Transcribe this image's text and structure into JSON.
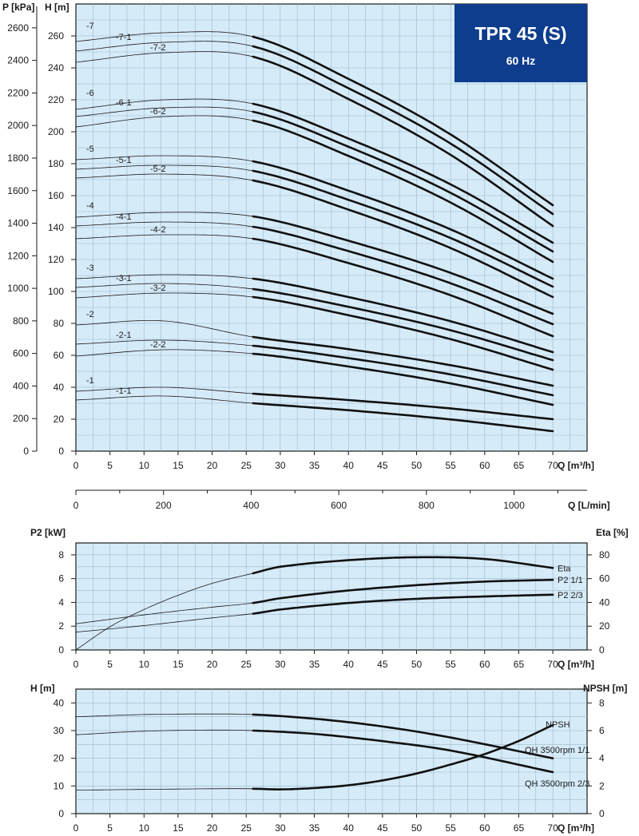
{
  "header": {
    "title": "TPR 45 (S)",
    "frequency": "60 Hz",
    "color": "#0d3d8c"
  },
  "chart_data": [
    {
      "type": "line",
      "name": "performance",
      "xlabel": "Q [m³/h]",
      "ylabel_left": "P [kPa]",
      "ylabel_right": "H [m]",
      "xlim": [
        0,
        75
      ],
      "ylim": [
        0,
        280
      ],
      "x_ticks": [
        0,
        5,
        10,
        15,
        20,
        25,
        30,
        35,
        40,
        45,
        50,
        55,
        60,
        65,
        70
      ],
      "y_ticks": [
        0,
        20,
        40,
        60,
        80,
        100,
        120,
        140,
        160,
        180,
        200,
        220,
        240,
        260
      ],
      "p_ticks": [
        0,
        200,
        400,
        600,
        800,
        1000,
        1200,
        1400,
        1600,
        1800,
        2000,
        2200,
        2400,
        2600
      ],
      "x_ticks_lmin": [
        0,
        200,
        400,
        600,
        800,
        1000
      ],
      "xlabel_lmin": "Q [L/min]",
      "operating_range_start": 26,
      "series": [
        {
          "name": "-7",
          "h0": 256.5,
          "h26": 259.5,
          "h70": 154.0
        },
        {
          "name": "-7-1",
          "h0": 250.5,
          "h26": 253.5,
          "h70": 148.5
        },
        {
          "name": "-7-2",
          "h0": 243.5,
          "h26": 247.0,
          "h70": 141.0
        },
        {
          "name": "-6",
          "h0": 214.0,
          "h26": 217.5,
          "h70": 130.5
        },
        {
          "name": "-6-1",
          "h0": 209.5,
          "h26": 212.5,
          "h70": 125.0
        },
        {
          "name": "-6-2",
          "h0": 203.0,
          "h26": 207.0,
          "h70": 118.5
        },
        {
          "name": "-5",
          "h0": 182.5,
          "h26": 181.5,
          "h70": 108.0
        },
        {
          "name": "-5-1",
          "h0": 176.5,
          "h26": 175.5,
          "h70": 103.0
        },
        {
          "name": "-5-2",
          "h0": 171.0,
          "h26": 169.5,
          "h70": 96.5
        },
        {
          "name": "-4",
          "h0": 146.5,
          "h26": 147.0,
          "h70": 86.0
        },
        {
          "name": "-4-1",
          "h0": 141.0,
          "h26": 140.5,
          "h70": 79.5
        },
        {
          "name": "-4-2",
          "h0": 133.0,
          "h26": 133.0,
          "h70": 72.0
        },
        {
          "name": "-3",
          "h0": 108.0,
          "h26": 108.0,
          "h70": 62.0
        },
        {
          "name": "-3-1",
          "h0": 102.5,
          "h26": 101.5,
          "h70": 57.0
        },
        {
          "name": "-3-2",
          "h0": 96.0,
          "h26": 96.5,
          "h70": 51.0
        },
        {
          "name": "-2",
          "h0": 79.0,
          "h26": 71.5,
          "h70": 41.0
        },
        {
          "name": "-2-1",
          "h0": 67.0,
          "h26": 66.0,
          "h70": 35.0
        },
        {
          "name": "-2-2",
          "h0": 59.5,
          "h26": 61.0,
          "h70": 29.0
        },
        {
          "name": "-1",
          "h0": 37.5,
          "h26": 36.0,
          "h70": 20.0
        },
        {
          "name": "-1-1",
          "h0": 32.0,
          "h26": 30.0,
          "h70": 12.5
        }
      ]
    },
    {
      "type": "line",
      "name": "power-efficiency",
      "xlabel": "Q [m³/h]",
      "ylabel_left": "P2 [kW]",
      "ylabel_right": "Eta [%]",
      "xlim": [
        0,
        75
      ],
      "ylim_left": [
        0,
        9
      ],
      "ylim_right": [
        0,
        90
      ],
      "x_ticks": [
        0,
        5,
        10,
        15,
        20,
        25,
        30,
        35,
        40,
        45,
        50,
        55,
        60,
        65,
        70
      ],
      "y_ticks_left": [
        0,
        2,
        4,
        6,
        8
      ],
      "y_ticks_right": [
        0,
        20,
        40,
        60,
        80
      ],
      "operating_range_start": 26,
      "series": [
        {
          "name": "Eta",
          "axis": "right",
          "x": [
            0,
            5,
            10,
            15,
            20,
            26,
            30,
            40,
            50,
            60,
            70
          ],
          "y": [
            0,
            19.5,
            34,
            46,
            56,
            64.5,
            70,
            75.5,
            78,
            76.5,
            69
          ]
        },
        {
          "name": "P2 1/1",
          "axis": "left",
          "x": [
            0,
            10,
            20,
            26,
            30,
            40,
            50,
            60,
            70
          ],
          "y": [
            2.2,
            2.95,
            3.6,
            3.95,
            4.35,
            5.0,
            5.45,
            5.75,
            5.9
          ]
        },
        {
          "name": "P2 2/3",
          "axis": "left",
          "x": [
            0,
            10,
            20,
            26,
            30,
            40,
            50,
            60,
            70
          ],
          "y": [
            1.5,
            2.05,
            2.7,
            3.05,
            3.4,
            3.95,
            4.3,
            4.5,
            4.65
          ]
        }
      ]
    },
    {
      "type": "line",
      "name": "npsh",
      "xlabel": "Q [m³/h]",
      "ylabel_left": "H [m]",
      "ylabel_right": "NPSH [m]",
      "xlim": [
        0,
        75
      ],
      "ylim_left": [
        0,
        45
      ],
      "ylim_right": [
        0,
        9
      ],
      "x_ticks": [
        0,
        5,
        10,
        15,
        20,
        25,
        30,
        35,
        40,
        45,
        50,
        55,
        60,
        65,
        70
      ],
      "y_ticks_left": [
        0,
        10,
        20,
        30,
        40
      ],
      "y_ticks_right": [
        0,
        2,
        4,
        6,
        8
      ],
      "operating_range_start": 26,
      "series": [
        {
          "name": "QH 3500rpm 1/1",
          "axis": "left",
          "x": [
            0,
            10,
            20,
            26,
            35,
            45,
            55,
            70
          ],
          "y": [
            35.0,
            35.8,
            36.0,
            35.8,
            34.3,
            31.5,
            27.5,
            20.0
          ]
        },
        {
          "name": "QH 3500rpm 2/3",
          "axis": "left",
          "x": [
            0,
            10,
            20,
            26,
            35,
            45,
            55,
            70
          ],
          "y": [
            28.5,
            29.8,
            30.2,
            30.0,
            28.8,
            26.2,
            22.8,
            15.0
          ]
        },
        {
          "name": "NPSH",
          "axis": "right",
          "x": [
            0,
            10,
            20,
            26,
            30,
            35,
            40,
            45,
            50,
            55,
            60,
            65,
            70
          ],
          "y": [
            1.7,
            1.75,
            1.8,
            1.8,
            1.75,
            1.85,
            2.05,
            2.4,
            2.9,
            3.55,
            4.3,
            5.25,
            6.4
          ]
        }
      ]
    }
  ]
}
